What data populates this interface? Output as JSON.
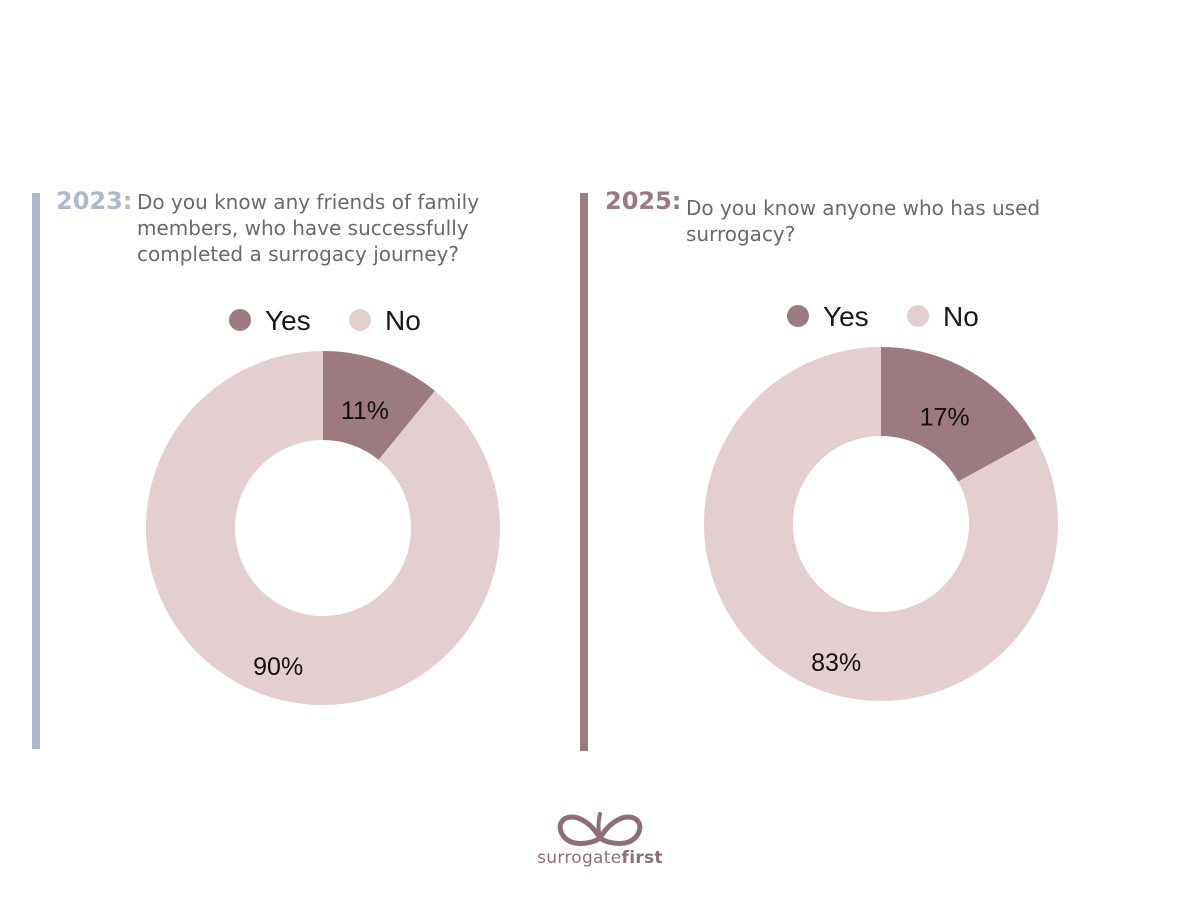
{
  "colors": {
    "accent_2023": "#adb7cf",
    "accent_2025": "#9b7a80",
    "yes": "#9b7a80",
    "no": "#e3cfcf",
    "logo": "#8e6f75"
  },
  "panels": [
    {
      "year": "2023:",
      "question_lines": [
        "Do you know any friends of family",
        "members, who have successfully",
        "completed a surrogacy journey?"
      ]
    },
    {
      "year": "2025:",
      "question_lines": [
        "Do you know anyone who has used",
        "surrogacy?"
      ]
    }
  ],
  "chart_data": [
    {
      "type": "pie",
      "variant": "donut",
      "categories": [
        "Yes",
        "No"
      ],
      "values": [
        11,
        90
      ],
      "labels": [
        "11%",
        "90%"
      ],
      "legend": "top"
    },
    {
      "type": "pie",
      "variant": "donut",
      "categories": [
        "Yes",
        "No"
      ],
      "values": [
        17,
        83
      ],
      "labels": [
        "17%",
        "83%"
      ],
      "legend": "top"
    }
  ],
  "logo": {
    "icon": "butterfly-icon",
    "text_light": "surrogate",
    "text_bold": "first"
  }
}
